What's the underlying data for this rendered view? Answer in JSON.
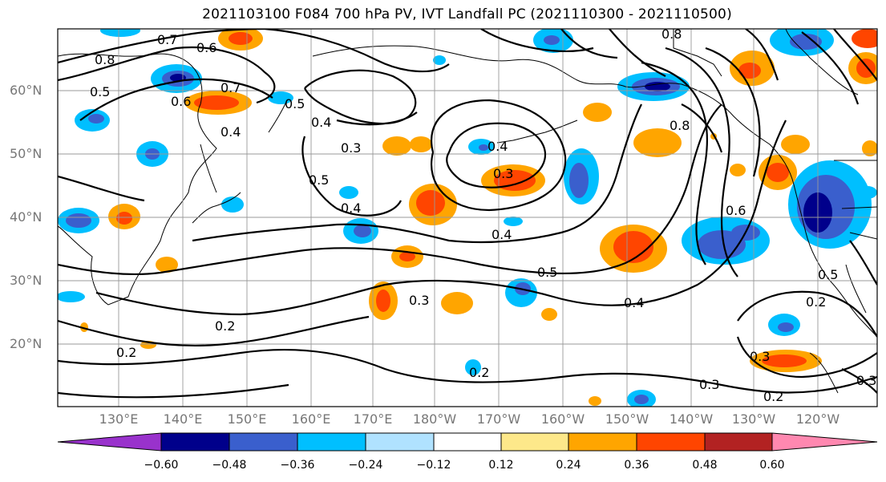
{
  "title": "2021103100 F084 700 hPa PV, IVT Landfall PC (2021110300 - 2021110500)",
  "lat_labels": [
    "60°N",
    "50°N",
    "40°N",
    "30°N",
    "20°N"
  ],
  "lon_labels": [
    "130°E",
    "140°E",
    "150°E",
    "160°E",
    "170°E",
    "180°W",
    "170°W",
    "160°W",
    "150°W",
    "140°W",
    "130°W",
    "120°W"
  ],
  "colorbar": {
    "tick_labels": [
      "−0.60",
      "−0.48",
      "−0.36",
      "−0.24",
      "−0.12",
      "0.12",
      "0.24",
      "0.36",
      "0.48",
      "0.60"
    ],
    "colors": [
      "#9932cc",
      "#00008b",
      "#3a5fcd",
      "#00bfff",
      "#b0e2ff",
      "#ffffff",
      "#fde88a",
      "#ffa500",
      "#ff4500",
      "#b22222",
      "#ff88b0"
    ]
  },
  "contour_labels": [
    "0.7",
    "0.6",
    "0.8",
    "0.5",
    "0.7",
    "0.6",
    "0.4",
    "0.5",
    "0.4",
    "0.3",
    "0.5",
    "0.4",
    "0.3",
    "0.4",
    "0.4",
    "0.5",
    "0.3",
    "0.2",
    "0.2",
    "0.2",
    "0.8",
    "0.6",
    "0.4",
    "0.5",
    "0.3",
    "0.2",
    "0.3",
    "0.2",
    "0.3",
    "0.8"
  ]
}
